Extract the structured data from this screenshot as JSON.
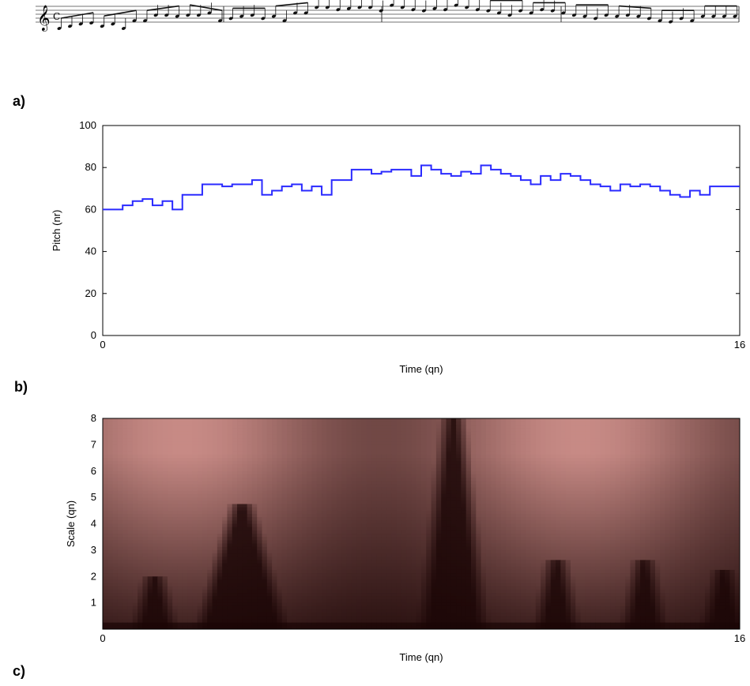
{
  "panel_labels": [
    "a)",
    "b)",
    "c)"
  ],
  "score": {
    "clef": "treble",
    "time_signature": "C",
    "measures": 4
  },
  "chart_data": [
    {
      "type": "line",
      "style": "step",
      "xlabel": "Time (qn)",
      "ylabel": "Pitch (nr)",
      "xlim": [
        0,
        16
      ],
      "ylim": [
        0,
        100
      ],
      "xticks": [
        0,
        16
      ],
      "yticks": [
        0,
        20,
        40,
        60,
        80,
        100
      ],
      "line_color": "#2a2aff",
      "x": [
        0,
        0.5,
        0.75,
        1.0,
        1.25,
        1.5,
        1.75,
        2.0,
        2.25,
        2.5,
        2.75,
        3.0,
        3.25,
        3.5,
        3.75,
        4.0,
        4.25,
        4.5,
        4.75,
        5.0,
        5.25,
        5.5,
        5.75,
        6.0,
        6.25,
        6.5,
        6.75,
        7.0,
        7.25,
        7.5,
        7.75,
        8.0,
        8.25,
        8.5,
        8.75,
        9.0,
        9.25,
        9.5,
        9.75,
        10.0,
        10.25,
        10.5,
        10.75,
        11.0,
        11.25,
        11.5,
        11.75,
        12.0,
        12.25,
        12.5,
        12.75,
        13.0,
        13.25,
        13.5,
        13.75,
        14.0,
        14.25,
        14.5,
        14.75,
        15.0,
        15.25,
        15.5,
        15.75,
        16.0
      ],
      "y": [
        60,
        62,
        64,
        65,
        62,
        64,
        60,
        67,
        67,
        72,
        72,
        71,
        72,
        72,
        74,
        67,
        69,
        71,
        72,
        69,
        71,
        67,
        74,
        74,
        79,
        79,
        77,
        78,
        79,
        79,
        76,
        81,
        79,
        77,
        76,
        78,
        77,
        81,
        79,
        77,
        76,
        74,
        72,
        76,
        74,
        77,
        76,
        74,
        72,
        71,
        69,
        72,
        71,
        72,
        71,
        69,
        67,
        66,
        69,
        67,
        71,
        71,
        71,
        71
      ]
    },
    {
      "type": "heatmap",
      "xlabel": "Time (qn)",
      "ylabel": "Scale (qn)",
      "xlim": [
        0,
        16
      ],
      "ylim": [
        0,
        8
      ],
      "xticks": [
        0,
        16
      ],
      "yticks": [
        1,
        2,
        3,
        4,
        5,
        6,
        7,
        8
      ],
      "colormap": [
        "#1a0505",
        "#c78a85"
      ]
    }
  ]
}
